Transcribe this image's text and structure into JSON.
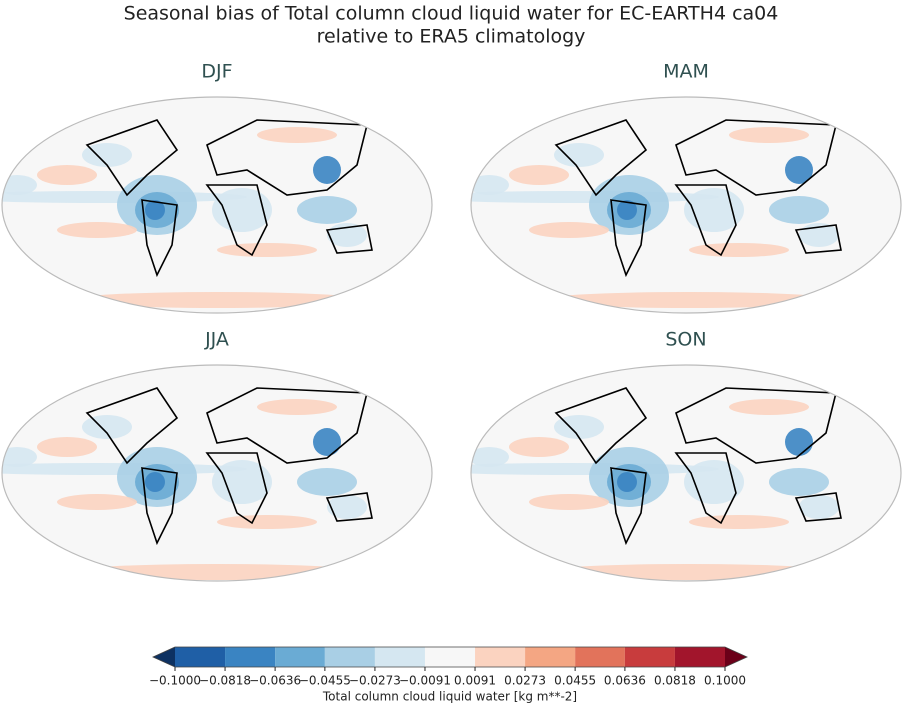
{
  "title_lines": [
    "Seasonal bias of Total column cloud liquid water for EC-EARTH4 ca04",
    "relative to ERA5 climatology"
  ],
  "panels": [
    {
      "label": "DJF"
    },
    {
      "label": "MAM"
    },
    {
      "label": "JJA"
    },
    {
      "label": "SON"
    }
  ],
  "colorbar": {
    "label": "Total column cloud liquid water [kg m**-2]",
    "ticks": [
      {
        "value": -0.1,
        "label": "−0.1000"
      },
      {
        "value": -0.0818,
        "label": "−0.0818"
      },
      {
        "value": -0.0636,
        "label": "−0.0636"
      },
      {
        "value": -0.0455,
        "label": "−0.0455"
      },
      {
        "value": -0.0273,
        "label": "−0.0273"
      },
      {
        "value": -0.0091,
        "label": "−0.0091"
      },
      {
        "value": 0.0091,
        "label": "0.0091"
      },
      {
        "value": 0.0273,
        "label": "0.0273"
      },
      {
        "value": 0.0455,
        "label": "0.0455"
      },
      {
        "value": 0.0636,
        "label": "0.0636"
      },
      {
        "value": 0.0818,
        "label": "0.0818"
      },
      {
        "value": 0.1,
        "label": "0.1000"
      }
    ],
    "colors": [
      "#1f5fa6",
      "#3a84c2",
      "#6aabd4",
      "#a9cfe5",
      "#d5e7f1",
      "#f7f7f7",
      "#fbd3c0",
      "#f4a683",
      "#e2735b",
      "#c83c3d",
      "#a2152c"
    ],
    "under_color": "#0d3161",
    "over_color": "#6b0019"
  }
}
